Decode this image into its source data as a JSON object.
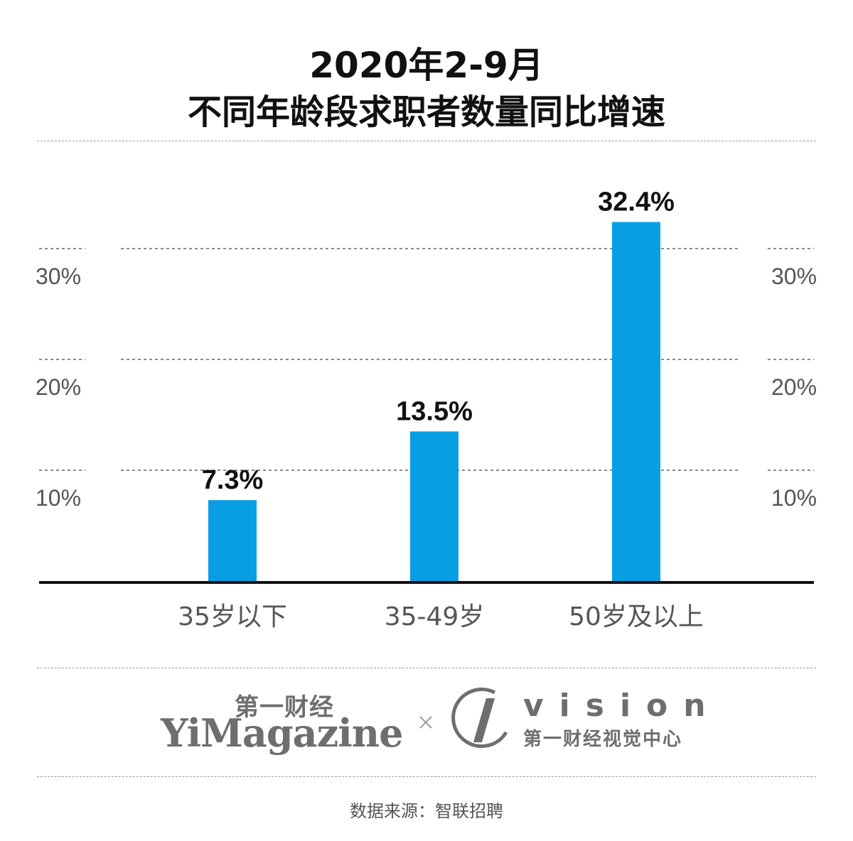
{
  "title_line1": "2020年2-9月",
  "title_line2": "不同年龄段求职者数量同比增速",
  "chart_data": {
    "type": "bar",
    "categories": [
      "35岁以下",
      "35-49岁",
      "50岁及以上"
    ],
    "values": [
      7.3,
      13.5,
      32.4
    ],
    "value_labels": [
      "7.3%",
      "13.5%",
      "32.4%"
    ],
    "yticks": [
      10,
      20,
      30
    ],
    "ytick_labels": [
      "10%",
      "20%",
      "30%"
    ],
    "ylim": [
      0,
      30
    ],
    "grid": true,
    "bar_color": "#089ee3"
  },
  "brand": {
    "yicai_cn": "第一财经",
    "yicai_en": "YiMagazine",
    "vision_word": "vision",
    "vision_sub": "第一财经视觉中心"
  },
  "source": "数据来源：智联招聘"
}
